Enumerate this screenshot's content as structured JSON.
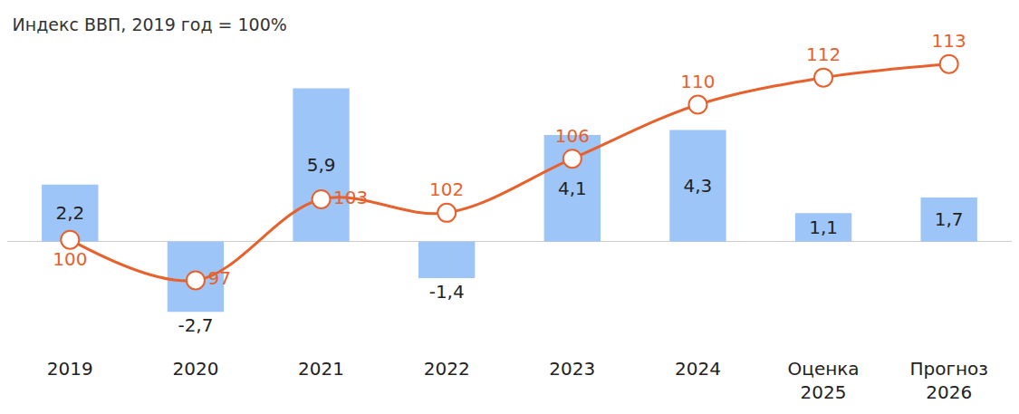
{
  "chart_data": {
    "type": "bar",
    "title": "Индекс ВВП, 2019 год = 100%",
    "categories": [
      "2019",
      "2020",
      "2021",
      "2022",
      "2023",
      "2024",
      "Оценка 2025",
      "Прогноз 2026"
    ],
    "series": [
      {
        "type": "bar",
        "color": "#9ec5f7",
        "values": [
          2.2,
          -2.7,
          5.9,
          -1.4,
          4.1,
          4.3,
          1.1,
          1.7
        ],
        "value_labels": [
          "2,2",
          "-2,7",
          "5,9",
          "-1,4",
          "4,1",
          "4,3",
          "1,1",
          "1,7"
        ]
      },
      {
        "type": "line",
        "axis": "y2",
        "color": "#e8612c",
        "marker": "circle",
        "line_style": "solid",
        "values": [
          100,
          97,
          103,
          102,
          106,
          110,
          112,
          113
        ]
      }
    ],
    "ylim": [
      -4.4,
      8.6
    ],
    "y2lim": [
      91.4,
      116.4
    ],
    "data_labels": true,
    "tick_labels": "x",
    "grid": false
  }
}
